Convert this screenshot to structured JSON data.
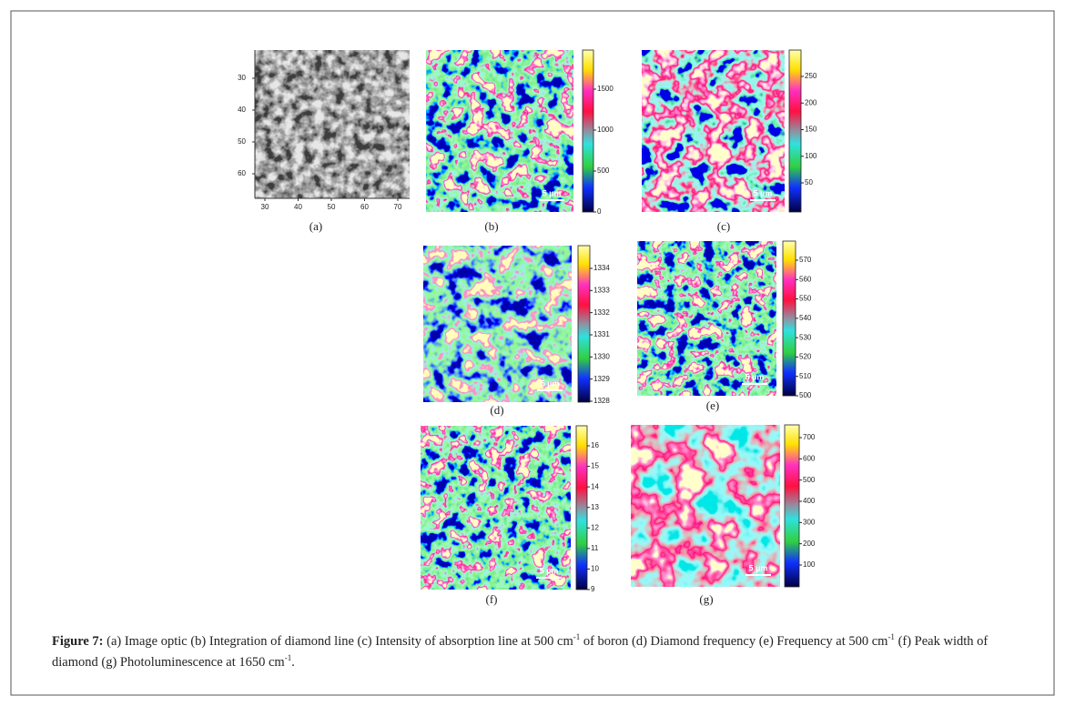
{
  "figure": {
    "panels": [
      {
        "label": "(a)",
        "x_ticks": [
          30,
          40,
          50,
          60,
          70
        ],
        "y_ticks": [
          30,
          40,
          50,
          60
        ]
      },
      {
        "label": "(b)",
        "colorbar_ticks": [
          1500,
          1000,
          500,
          0
        ],
        "scale_bar": "5 µm"
      },
      {
        "label": "(c)",
        "colorbar_ticks": [
          250,
          200,
          150,
          100,
          50
        ],
        "scale_bar": "5 µm"
      },
      {
        "label": "(d)",
        "colorbar_ticks": [
          1334,
          1333,
          1332,
          1331,
          1330,
          1329,
          1328
        ],
        "scale_bar": "5 µm"
      },
      {
        "label": "(e)",
        "colorbar_ticks": [
          570,
          560,
          550,
          540,
          530,
          520,
          510,
          500
        ],
        "scale_bar": "5 µm"
      },
      {
        "label": "(f)",
        "colorbar_ticks": [
          16,
          15,
          14,
          13,
          12,
          11,
          10,
          9
        ],
        "scale_bar": "5 µm"
      },
      {
        "label": "(g)",
        "colorbar_ticks": [
          700,
          600,
          500,
          400,
          300,
          200,
          100
        ],
        "scale_bar": "5 µm"
      }
    ],
    "caption": {
      "lead": "Figure 7:",
      "runs": [
        {
          "text": " (a) Image optic (b) Integration of diamond line (c) Intensity of absorption line at 500 cm"
        },
        {
          "sup": "-1"
        },
        {
          "text": " of boron (d) Diamond frequency (e) Frequency at 500 cm"
        },
        {
          "sup": "-1"
        },
        {
          "text": " (f) Peak width of diamond (g) Photoluminescence at 1650 cm"
        },
        {
          "sup": "-1"
        },
        {
          "text": "."
        }
      ]
    }
  }
}
